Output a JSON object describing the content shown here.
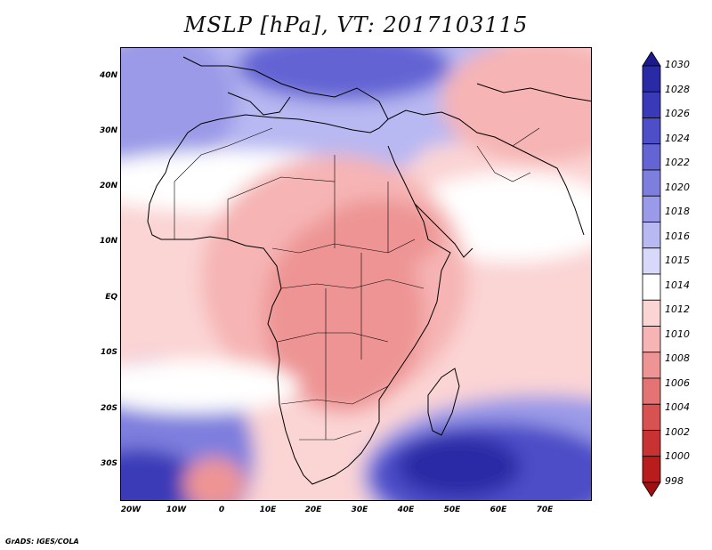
{
  "title": "MSLP [hPa], VT: 2017103115",
  "footer": "GrADS: IGES/COLA",
  "map": {
    "lat_labels": [
      "40N",
      "30N",
      "20N",
      "10N",
      "EQ",
      "10S",
      "20S",
      "30S"
    ],
    "lon_labels": [
      "20W",
      "10W",
      "0",
      "10E",
      "20E",
      "30E",
      "40E",
      "50E",
      "60E",
      "70E"
    ],
    "lon_range": [
      -22,
      80
    ],
    "lat_range": [
      -37,
      45
    ]
  },
  "colorbar": {
    "labels": [
      "1030",
      "1028",
      "1026",
      "1024",
      "1022",
      "1020",
      "1018",
      "1016",
      "1015",
      "1014",
      "1012",
      "1010",
      "1008",
      "1006",
      "1004",
      "1002",
      "1000",
      "998"
    ],
    "colors": [
      "#1a1a8c",
      "#2a2aa6",
      "#3a3ab8",
      "#4e4ec8",
      "#6464d4",
      "#7e7ede",
      "#9a9ae8",
      "#b8b8f2",
      "#d8d8fa",
      "#ffffff",
      "#fbd4d4",
      "#f6b4b4",
      "#ee9494",
      "#e47474",
      "#d85252",
      "#c83232",
      "#b81c1c",
      "#a01010"
    ]
  }
}
